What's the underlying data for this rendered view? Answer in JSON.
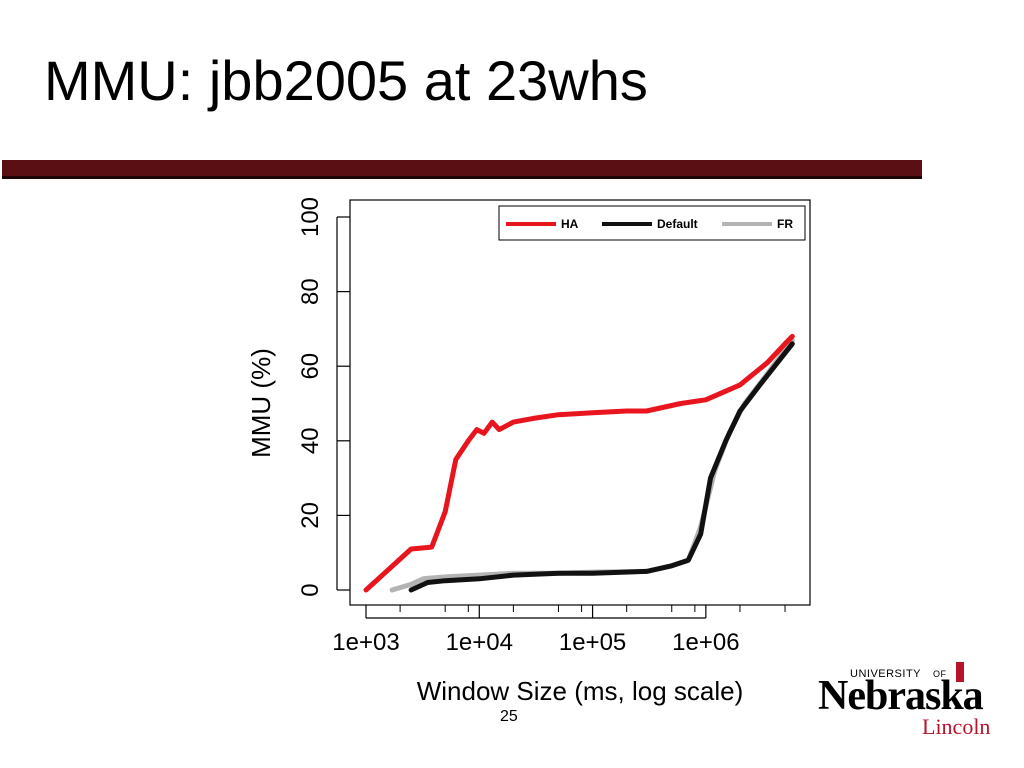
{
  "slide": {
    "title": "MMU: jbb2005 at 23whs",
    "page_number": "25"
  },
  "colors": {
    "rule": "#5a0f14",
    "accent": "#b8132b"
  },
  "chart_data": {
    "type": "line",
    "title": "",
    "xlabel": "Window Size (ms, log scale)",
    "ylabel": "MMU (%)",
    "x_scale": "log",
    "xlim": [
      1000,
      6000000
    ],
    "ylim": [
      0,
      100
    ],
    "x_ticks": [
      1000,
      10000,
      100000,
      1000000
    ],
    "x_tick_labels": [
      "1e+03",
      "1e+04",
      "1e+05",
      "1e+06"
    ],
    "y_ticks": [
      0,
      20,
      40,
      60,
      80,
      100
    ],
    "y_tick_labels": [
      "0",
      "20",
      "40",
      "60",
      "80",
      "100"
    ],
    "grid": false,
    "legend_position": "top-right",
    "series": [
      {
        "name": "HA",
        "color": "#e8141e",
        "points": [
          [
            1000,
            0
          ],
          [
            2500,
            11
          ],
          [
            3800,
            11.5
          ],
          [
            5000,
            21
          ],
          [
            6200,
            35
          ],
          [
            8000,
            40
          ],
          [
            9500,
            43
          ],
          [
            11000,
            42
          ],
          [
            13000,
            45
          ],
          [
            15000,
            43
          ],
          [
            20000,
            45
          ],
          [
            30000,
            46
          ],
          [
            50000,
            47
          ],
          [
            100000,
            47.5
          ],
          [
            200000,
            48
          ],
          [
            300000,
            48
          ],
          [
            600000,
            50
          ],
          [
            1000000,
            51
          ],
          [
            2000000,
            55
          ],
          [
            3500000,
            61
          ],
          [
            5000000,
            66
          ],
          [
            5800000,
            68
          ]
        ]
      },
      {
        "name": "Default",
        "color": "#111111",
        "points": [
          [
            2500,
            0
          ],
          [
            3500,
            2
          ],
          [
            5000,
            2.5
          ],
          [
            10000,
            3
          ],
          [
            20000,
            4
          ],
          [
            50000,
            4.5
          ],
          [
            100000,
            4.5
          ],
          [
            300000,
            5
          ],
          [
            500000,
            6.5
          ],
          [
            700000,
            8
          ],
          [
            900000,
            15
          ],
          [
            1100000,
            30
          ],
          [
            1500000,
            40
          ],
          [
            2000000,
            48
          ],
          [
            3000000,
            55
          ],
          [
            5800000,
            66
          ]
        ]
      },
      {
        "name": "FR",
        "color": "#b3b3b3",
        "points": [
          [
            1700,
            0
          ],
          [
            2500,
            1.5
          ],
          [
            3200,
            3
          ],
          [
            5000,
            3.5
          ],
          [
            10000,
            4
          ],
          [
            20000,
            4.5
          ],
          [
            50000,
            4.5
          ],
          [
            100000,
            4.8
          ],
          [
            300000,
            5
          ],
          [
            500000,
            6.5
          ],
          [
            700000,
            8
          ],
          [
            900000,
            17
          ],
          [
            1200000,
            32
          ],
          [
            1600000,
            42
          ],
          [
            2200000,
            50
          ],
          [
            3500000,
            58
          ],
          [
            5800000,
            67
          ]
        ]
      }
    ]
  }
}
